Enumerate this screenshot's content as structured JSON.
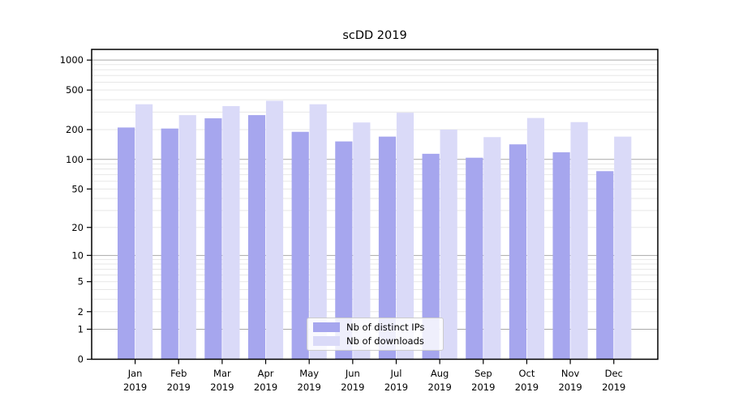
{
  "title": "scDD 2019",
  "chart_data": {
    "type": "bar",
    "title": "scDD 2019",
    "categories": [
      "Jan 2019",
      "Feb 2019",
      "Mar 2019",
      "Apr 2019",
      "May 2019",
      "Jun 2019",
      "Jul 2019",
      "Aug 2019",
      "Sep 2019",
      "Oct 2019",
      "Nov 2019",
      "Dec 2019"
    ],
    "series": [
      {
        "name": "Nb of distinct IPs",
        "color": "#a6a6ee",
        "values": [
          210,
          205,
          260,
          280,
          190,
          152,
          170,
          114,
          104,
          142,
          118,
          76
        ]
      },
      {
        "name": "Nb of downloads",
        "color": "#dadaf8",
        "values": [
          360,
          280,
          345,
          390,
          360,
          236,
          296,
          200,
          168,
          262,
          238,
          170
        ]
      }
    ],
    "ylabel": "",
    "xlabel": "",
    "yscale": "log1p",
    "yticks": [
      0,
      1,
      2,
      5,
      10,
      20,
      50,
      100,
      200,
      500,
      1000
    ],
    "ylim": [
      0,
      1280
    ],
    "grid": "both",
    "legend_position": "lower center",
    "colors": {
      "major_grid": "#a9a9a9",
      "minor_grid": "#e7e7e7",
      "axis": "#000000",
      "text": "#000000",
      "background": "#ffffff"
    }
  }
}
